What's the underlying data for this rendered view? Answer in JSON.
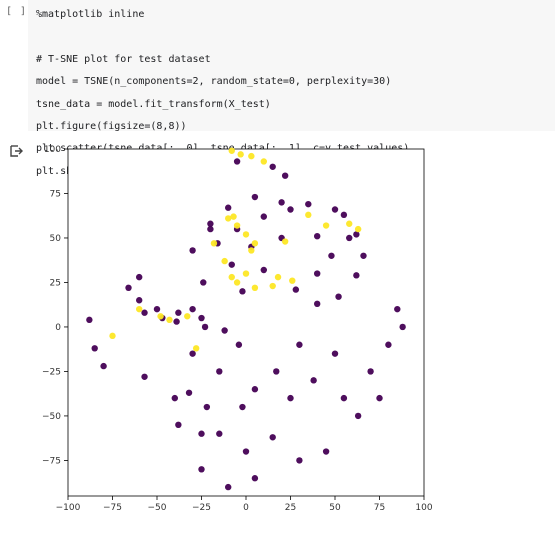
{
  "cell": {
    "prompt": "[ ]",
    "code_lines": [
      "%matplotlib inline",
      "",
      "# T-SNE plot for test dataset",
      "model = TSNE(n_components=2, random_state=0, perplexity=30)",
      "tsne_data = model.fit_transform(X_test)",
      "plt.figure(figsize=(8,8))",
      "plt.scatter(tsne_data[:, 0], tsne_data[:, 1], c=y_test.values)",
      "plt.show()"
    ]
  },
  "output": {
    "icon": "output-arrow-icon"
  },
  "chart_data": {
    "type": "scatter",
    "title": "",
    "xlabel": "",
    "ylabel": "",
    "xlim": [
      -100,
      100
    ],
    "ylim": [
      -95,
      100
    ],
    "xticks": [
      -100,
      -75,
      -50,
      -25,
      0,
      25,
      50,
      75,
      100
    ],
    "yticks": [
      -75,
      -50,
      -25,
      0,
      25,
      50,
      75,
      100
    ],
    "grid": false,
    "colors": {
      "class_0": "#440154",
      "class_1": "#fde725"
    },
    "series": [
      {
        "values": [
          [
            -66,
            22
          ],
          [
            -60,
            15
          ],
          [
            -57,
            8
          ],
          [
            -47,
            5
          ],
          [
            -39,
            3
          ],
          [
            -30,
            10
          ],
          [
            -88,
            4
          ],
          [
            -85,
            -12
          ],
          [
            -80,
            -22
          ],
          [
            -30,
            43
          ],
          [
            -20,
            55
          ],
          [
            -10,
            67
          ],
          [
            5,
            73
          ],
          [
            20,
            70
          ],
          [
            35,
            69
          ],
          [
            50,
            66
          ],
          [
            55,
            63
          ],
          [
            62,
            52
          ],
          [
            66,
            40
          ],
          [
            62,
            29
          ],
          [
            52,
            17
          ],
          [
            40,
            13
          ],
          [
            28,
            21
          ],
          [
            10,
            32
          ],
          [
            3,
            45
          ],
          [
            20,
            50
          ],
          [
            40,
            51
          ],
          [
            58,
            50
          ],
          [
            -20,
            58
          ],
          [
            -24,
            25
          ],
          [
            -23,
            0
          ],
          [
            -15,
            -25
          ],
          [
            -2,
            -45
          ],
          [
            15,
            -62
          ],
          [
            30,
            -75
          ],
          [
            45,
            -70
          ],
          [
            70,
            -25
          ],
          [
            80,
            -10
          ],
          [
            85,
            10
          ],
          [
            -38,
            -55
          ],
          [
            -25,
            -80
          ],
          [
            -10,
            -90
          ],
          [
            5,
            -85
          ],
          [
            -15,
            -60
          ],
          [
            -25,
            -60
          ],
          [
            0,
            -70
          ],
          [
            -57,
            -28
          ],
          [
            -32,
            -37
          ],
          [
            -22,
            -45
          ],
          [
            -5,
            93
          ],
          [
            15,
            90
          ],
          [
            22,
            85
          ],
          [
            -60,
            28
          ],
          [
            -50,
            10
          ],
          [
            -38,
            8
          ],
          [
            -25,
            5
          ],
          [
            25,
            -40
          ],
          [
            38,
            -30
          ],
          [
            50,
            -15
          ],
          [
            30,
            -10
          ],
          [
            40,
            30
          ],
          [
            48,
            40
          ],
          [
            25,
            66
          ],
          [
            10,
            62
          ],
          [
            -5,
            55
          ],
          [
            -16,
            47
          ],
          [
            -2,
            20
          ],
          [
            -8,
            35
          ],
          [
            -4,
            -10
          ],
          [
            -12,
            -2
          ],
          [
            63,
            -50
          ],
          [
            55,
            -40
          ],
          [
            17,
            -25
          ],
          [
            5,
            -35
          ],
          [
            -30,
            -15
          ],
          [
            -40,
            -40
          ],
          [
            75,
            -40
          ],
          [
            88,
            0
          ]
        ]
      },
      {
        "values": [
          [
            -8,
            99
          ],
          [
            -3,
            97
          ],
          [
            3,
            96
          ],
          [
            10,
            93
          ],
          [
            -10,
            61
          ],
          [
            -5,
            57
          ],
          [
            0,
            52
          ],
          [
            5,
            47
          ],
          [
            -18,
            47
          ],
          [
            -7,
            62
          ],
          [
            22,
            48
          ],
          [
            3,
            43
          ],
          [
            45,
            57
          ],
          [
            58,
            58
          ],
          [
            63,
            55
          ],
          [
            35,
            63
          ],
          [
            15,
            23
          ],
          [
            0,
            30
          ],
          [
            -5,
            25
          ],
          [
            -60,
            10
          ],
          [
            -48,
            6
          ],
          [
            -43,
            4
          ],
          [
            -33,
            6
          ],
          [
            -28,
            -12
          ],
          [
            -75,
            -5
          ],
          [
            -8,
            28
          ],
          [
            -12,
            37
          ],
          [
            18,
            28
          ],
          [
            5,
            22
          ],
          [
            26,
            26
          ]
        ]
      }
    ]
  }
}
